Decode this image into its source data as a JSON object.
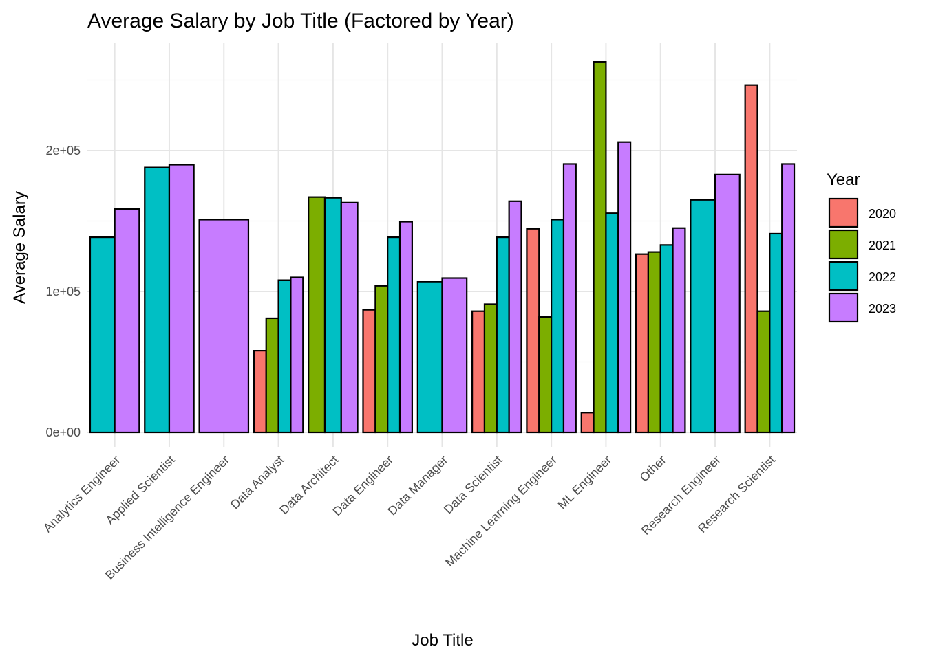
{
  "chart_data": {
    "type": "bar",
    "title": "Average Salary by Job Title (Factored by Year)",
    "xlabel": "Job Title",
    "ylabel": "Average Salary",
    "ylim": [
      0,
      260000
    ],
    "y_ticks": [
      {
        "value": 0,
        "label": "0e+00"
      },
      {
        "value": 100000,
        "label": "1e+05"
      },
      {
        "value": 200000,
        "label": "2e+05"
      }
    ],
    "grid": true,
    "legend": {
      "title": "Year",
      "position": "right"
    },
    "categories": [
      "Analytics Engineer",
      "Applied Scientist",
      "Business Intelligence Engineer",
      "Data Analyst",
      "Data Architect",
      "Data Engineer",
      "Data Manager",
      "Data Scientist",
      "Machine Learning Engineer",
      "ML Engineer",
      "Other",
      "Research Engineer",
      "Research Scientist"
    ],
    "series": [
      {
        "name": "2020",
        "color": "#F8766D",
        "values": [
          null,
          null,
          null,
          58000,
          null,
          87000,
          null,
          86000,
          144500,
          14000,
          126500,
          null,
          246500
        ]
      },
      {
        "name": "2021",
        "color": "#7CAE00",
        "values": [
          null,
          null,
          null,
          81000,
          167000,
          104000,
          null,
          91000,
          82000,
          263000,
          128000,
          null,
          86000
        ]
      },
      {
        "name": "2022",
        "color": "#00BFC4",
        "values": [
          138500,
          188000,
          null,
          108000,
          166500,
          138500,
          107000,
          138500,
          151000,
          155500,
          133000,
          165000,
          141000
        ]
      },
      {
        "name": "2023",
        "color": "#C77CFF",
        "values": [
          158500,
          190000,
          151000,
          110000,
          163000,
          149500,
          109500,
          164000,
          190500,
          206000,
          145000,
          183000,
          190500
        ]
      }
    ]
  }
}
